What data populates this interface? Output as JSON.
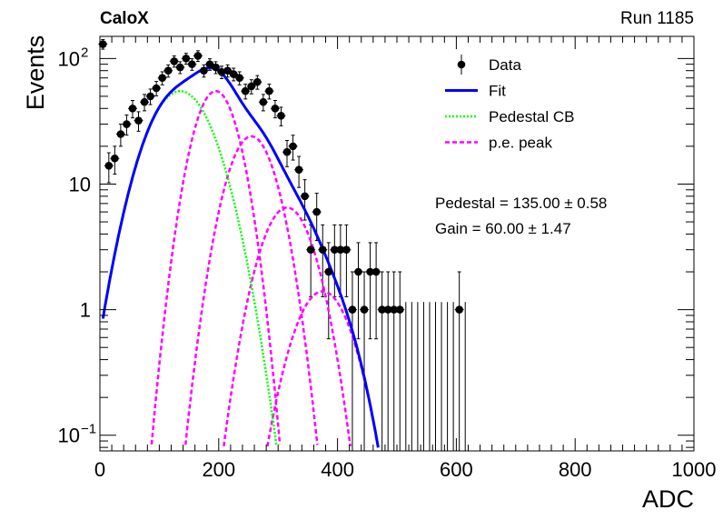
{
  "header": {
    "experiment": "CaloX",
    "run": "Run 1185"
  },
  "colors": {
    "data": "#000000",
    "fit": "#0000ff",
    "pedestal": "#00ff00",
    "pe": "#ff00ff",
    "frame": "#000000"
  },
  "stats": {
    "pedestal_text": "Pedestal = 135.00 ± 0.58",
    "gain_text": "Gain = 60.00 ± 1.47"
  },
  "chart_data": {
    "type": "scatter",
    "xlabel": "ADC",
    "ylabel": "Events",
    "xlim": [
      0,
      1000
    ],
    "ylim": [
      0.075,
      150
    ],
    "yscale": "log",
    "grid": false,
    "legend_position": "top-right",
    "x_ticks": [
      "0",
      "200",
      "400",
      "600",
      "800",
      "1000"
    ],
    "y_ticks": [
      {
        "value": 0.1,
        "base": "10",
        "exp": "−1"
      },
      {
        "value": 1,
        "base": "1",
        "exp": ""
      },
      {
        "value": 10,
        "base": "10",
        "exp": ""
      },
      {
        "value": 100,
        "base": "10",
        "exp": "2"
      }
    ],
    "legend": [
      {
        "label": "Data",
        "style": "marker"
      },
      {
        "label": "Fit",
        "style": "solid-blue"
      },
      {
        "label": "Pedestal CB",
        "style": "dotted-green"
      },
      {
        "label": "p.e. peak",
        "style": "dashed-magenta"
      }
    ],
    "data_points": {
      "x": [
        5,
        15,
        25,
        35,
        45,
        55,
        65,
        75,
        85,
        95,
        105,
        115,
        125,
        135,
        145,
        155,
        165,
        175,
        185,
        195,
        205,
        215,
        225,
        235,
        245,
        255,
        265,
        275,
        285,
        295,
        305,
        315,
        325,
        335,
        345,
        355,
        365,
        375,
        385,
        395,
        405,
        415,
        425,
        435,
        445,
        455,
        465,
        475,
        485,
        495,
        505,
        515,
        525,
        535,
        545,
        555,
        565,
        575,
        585,
        595,
        605,
        615
      ],
      "y": [
        130,
        14,
        16,
        25,
        30,
        40,
        32,
        45,
        50,
        58,
        70,
        80,
        95,
        85,
        100,
        90,
        105,
        80,
        90,
        85,
        78,
        80,
        75,
        70,
        55,
        60,
        65,
        45,
        55,
        40,
        35,
        18,
        20,
        13,
        8,
        3,
        6,
        3,
        2,
        3,
        3,
        3,
        1,
        2,
        1,
        2,
        2,
        1,
        1,
        1,
        1,
        0,
        0,
        0,
        0,
        0,
        0,
        0,
        0,
        0,
        1,
        0
      ]
    },
    "fit": {
      "pedestal": 135.0,
      "pedestal_err": 0.58,
      "gain": 60.0,
      "gain_err": 1.47,
      "pedestal_sigma": 45,
      "pedestal_amplitude": 55,
      "pe_sigma": [
        30,
        33,
        36,
        39
      ],
      "pe_peak_values": [
        55,
        24,
        6.5,
        1.4
      ]
    }
  }
}
